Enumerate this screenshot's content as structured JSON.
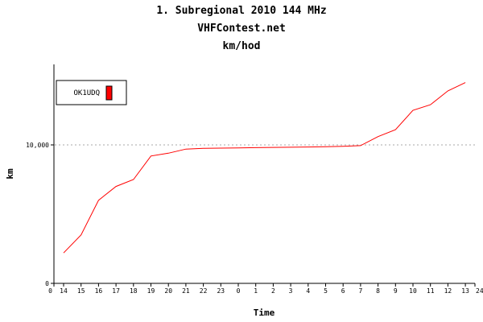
{
  "header": {
    "title_line1": "1. Subregional 2010 144 MHz",
    "title_line2": "VHFContest.net",
    "title_line3": "km/hod"
  },
  "chart_data": {
    "type": "line",
    "title": "1. Subregional 2010 144 MHz",
    "subtitle": "VHFContest.net",
    "subtitle2": "km/hod",
    "xlabel": "Time",
    "ylabel": "km",
    "x_tick_labels": [
      "0",
      "14",
      "15",
      "16",
      "17",
      "18",
      "19",
      "20",
      "21",
      "22",
      "23",
      "0",
      "1",
      "2",
      "3",
      "4",
      "5",
      "6",
      "7",
      "8",
      "9",
      "10",
      "11",
      "12",
      "13",
      "24"
    ],
    "y_tick_labels": [
      "0",
      "10,000"
    ],
    "ylim": [
      0,
      20000
    ],
    "grid": "horizontal dashed at 10,000",
    "legend_position": "top-left",
    "series": [
      {
        "name": "OK1UDQ",
        "color": "#ff0000",
        "x": [
          "14",
          "15",
          "16",
          "17",
          "18",
          "19",
          "20",
          "21",
          "22",
          "23",
          "0",
          "1",
          "2",
          "3",
          "4",
          "5",
          "6",
          "7",
          "8",
          "9",
          "10",
          "11",
          "12",
          "13"
        ],
        "values": [
          2200,
          3500,
          6000,
          7000,
          7500,
          9200,
          9400,
          9700,
          9750,
          9770,
          9780,
          9800,
          9820,
          9830,
          9850,
          9870,
          9900,
          9950,
          10600,
          11100,
          12500,
          12900,
          13900,
          14500
        ]
      }
    ]
  }
}
